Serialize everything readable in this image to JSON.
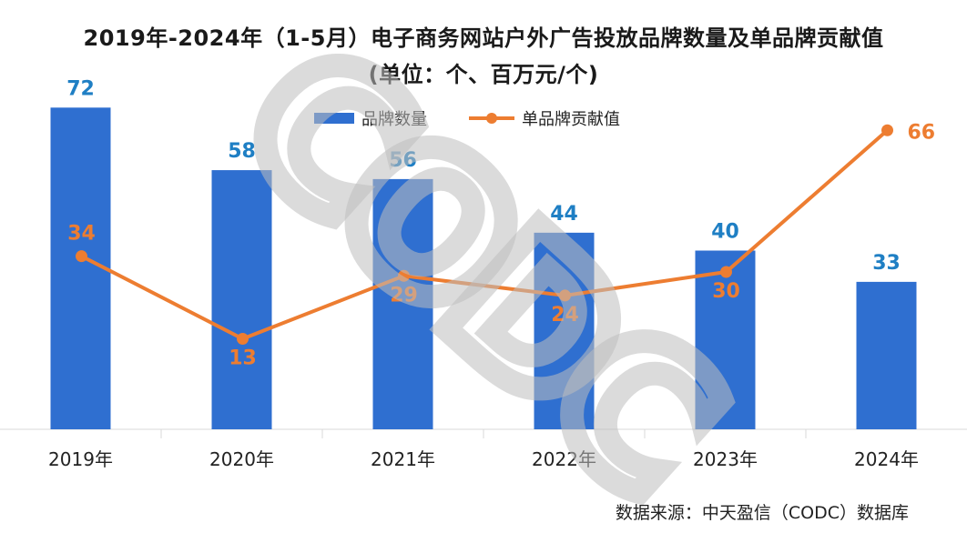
{
  "chart_data": {
    "type": "bar",
    "title": "2019年-2024年（1-5月）电子商务网站户外广告投放品牌数量及单品牌贡献值",
    "subtitle": "(单位：个、百万元/个)",
    "categories": [
      "2019年",
      "2020年",
      "2021年",
      "2022年",
      "2023年",
      "2024年"
    ],
    "series": [
      {
        "name": "品牌数量",
        "type": "bar",
        "values": [
          72,
          58,
          56,
          44,
          40,
          33
        ],
        "color": "#2f6fd0",
        "label_color": "#1f7fc4"
      },
      {
        "name": "单品牌贡献值",
        "type": "line",
        "values": [
          34,
          13,
          29,
          24,
          30,
          66
        ],
        "color": "#ed7d31",
        "label_color": "#ed7d31"
      }
    ],
    "legend_position": "top",
    "grid": false,
    "bar_ylim": [
      0,
      80
    ],
    "line_ylim": [
      -10,
      76
    ]
  },
  "source": "数据来源：中天盈信（CODC）数据库",
  "watermark": "CODC"
}
